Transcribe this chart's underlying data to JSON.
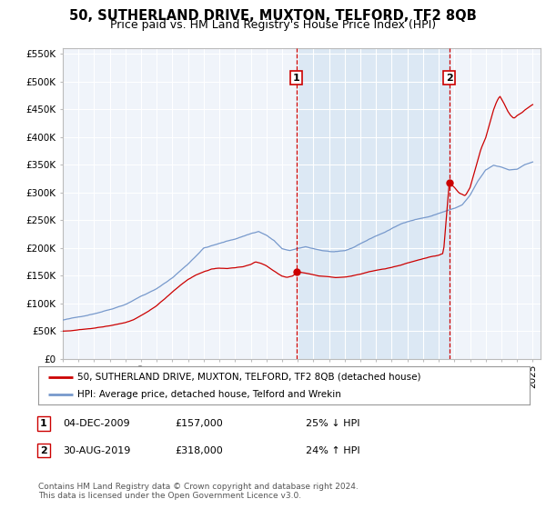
{
  "title": "50, SUTHERLAND DRIVE, MUXTON, TELFORD, TF2 8QB",
  "subtitle": "Price paid vs. HM Land Registry's House Price Index (HPI)",
  "title_fontsize": 10.5,
  "subtitle_fontsize": 9,
  "ylim": [
    0,
    560000
  ],
  "yticks": [
    0,
    50000,
    100000,
    150000,
    200000,
    250000,
    300000,
    350000,
    400000,
    450000,
    500000,
    550000
  ],
  "ytick_labels": [
    "£0",
    "£50K",
    "£100K",
    "£150K",
    "£200K",
    "£250K",
    "£300K",
    "£350K",
    "£400K",
    "£450K",
    "£500K",
    "£550K"
  ],
  "xlim_start": 1995.0,
  "xlim_end": 2025.5,
  "fig_bg_color": "#ffffff",
  "plot_bg_color": "#f0f4fa",
  "grid_color": "#ffffff",
  "red_line_color": "#cc0000",
  "blue_line_color": "#7799cc",
  "shade_color": "#d0e0f0",
  "marker1_x": 2009.92,
  "marker1_y": 157000,
  "marker1_label": "1",
  "marker1_date": "04-DEC-2009",
  "marker1_price": "£157,000",
  "marker1_note": "25% ↓ HPI",
  "marker2_x": 2019.67,
  "marker2_y": 318000,
  "marker2_label": "2",
  "marker2_date": "30-AUG-2019",
  "marker2_price": "£318,000",
  "marker2_note": "24% ↑ HPI",
  "legend_line1": "50, SUTHERLAND DRIVE, MUXTON, TELFORD, TF2 8QB (detached house)",
  "legend_line2": "HPI: Average price, detached house, Telford and Wrekin",
  "footnote": "Contains HM Land Registry data © Crown copyright and database right 2024.\nThis data is licensed under the Open Government Licence v3.0."
}
